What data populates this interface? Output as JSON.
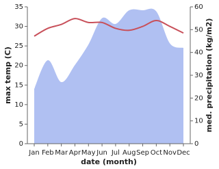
{
  "chart_data": {
    "type": "line",
    "categories": [
      "Jan",
      "Feb",
      "Mar",
      "Apr",
      "May",
      "Jun",
      "Jul",
      "Aug",
      "Sep",
      "Oct",
      "Nov",
      "Dec"
    ],
    "xlabel": "date (month)",
    "ylabel": "max temp (C)",
    "y2label": "med. precipitation (kg/m2)",
    "ylim": [
      0,
      35
    ],
    "yticks": [
      0,
      5,
      10,
      15,
      20,
      25,
      30,
      35
    ],
    "y2lim": [
      0,
      60
    ],
    "y2ticks": [
      0,
      10,
      20,
      30,
      40,
      50,
      60
    ],
    "series": [
      {
        "type": "area",
        "axis": "y2",
        "color": "#b0c0f2",
        "values": [
          24,
          36.6,
          27,
          34.5,
          43.5,
          55,
          52.5,
          58.5,
          58.5,
          58,
          44,
          42
        ]
      },
      {
        "type": "line",
        "axis": "y",
        "color": "#c8505a",
        "values": [
          27.5,
          29.5,
          30.5,
          32,
          31,
          31,
          29.5,
          29,
          30,
          31.5,
          30,
          28.3
        ]
      }
    ]
  }
}
